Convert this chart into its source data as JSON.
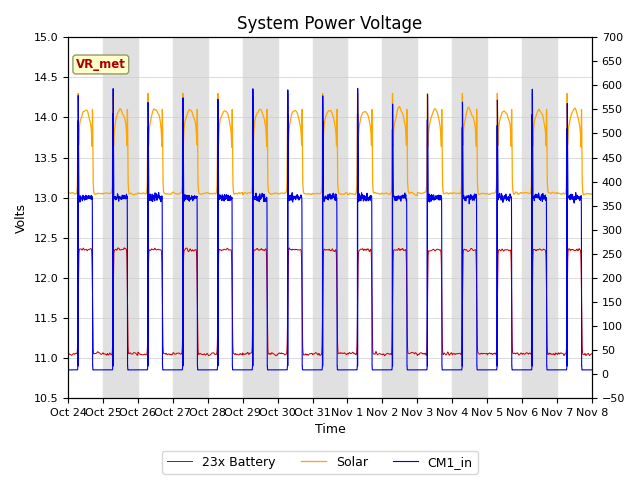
{
  "title": "System Power Voltage",
  "xlabel": "Time",
  "ylabel_left": "Volts",
  "ylim_left": [
    10.5,
    15.0
  ],
  "ylim_right": [
    -50,
    700
  ],
  "yticks_left": [
    10.5,
    11.0,
    11.5,
    12.0,
    12.5,
    13.0,
    13.5,
    14.0,
    14.5,
    15.0
  ],
  "yticks_right": [
    -50,
    0,
    50,
    100,
    150,
    200,
    250,
    300,
    350,
    400,
    450,
    500,
    550,
    600,
    650,
    700
  ],
  "xtick_labels": [
    "Oct 24",
    "Oct 25",
    "Oct 26",
    "Oct 27",
    "Oct 28",
    "Oct 29",
    "Oct 30",
    "Oct 31",
    "Nov 1",
    "Nov 2",
    "Nov 3",
    "Nov 4",
    "Nov 5",
    "Nov 6",
    "Nov 7",
    "Nov 8"
  ],
  "num_days": 15,
  "battery_color": "#cc0000",
  "solar_color": "#ffa500",
  "cm1_color": "#0000ee",
  "legend_labels": [
    "23x Battery",
    "Solar",
    "CM1_in"
  ],
  "vr_met_label": "VR_met",
  "background_color": "#ffffff",
  "band_color": "#e0e0e0",
  "title_fontsize": 12,
  "axis_label_fontsize": 9,
  "tick_fontsize": 8,
  "legend_fontsize": 9
}
